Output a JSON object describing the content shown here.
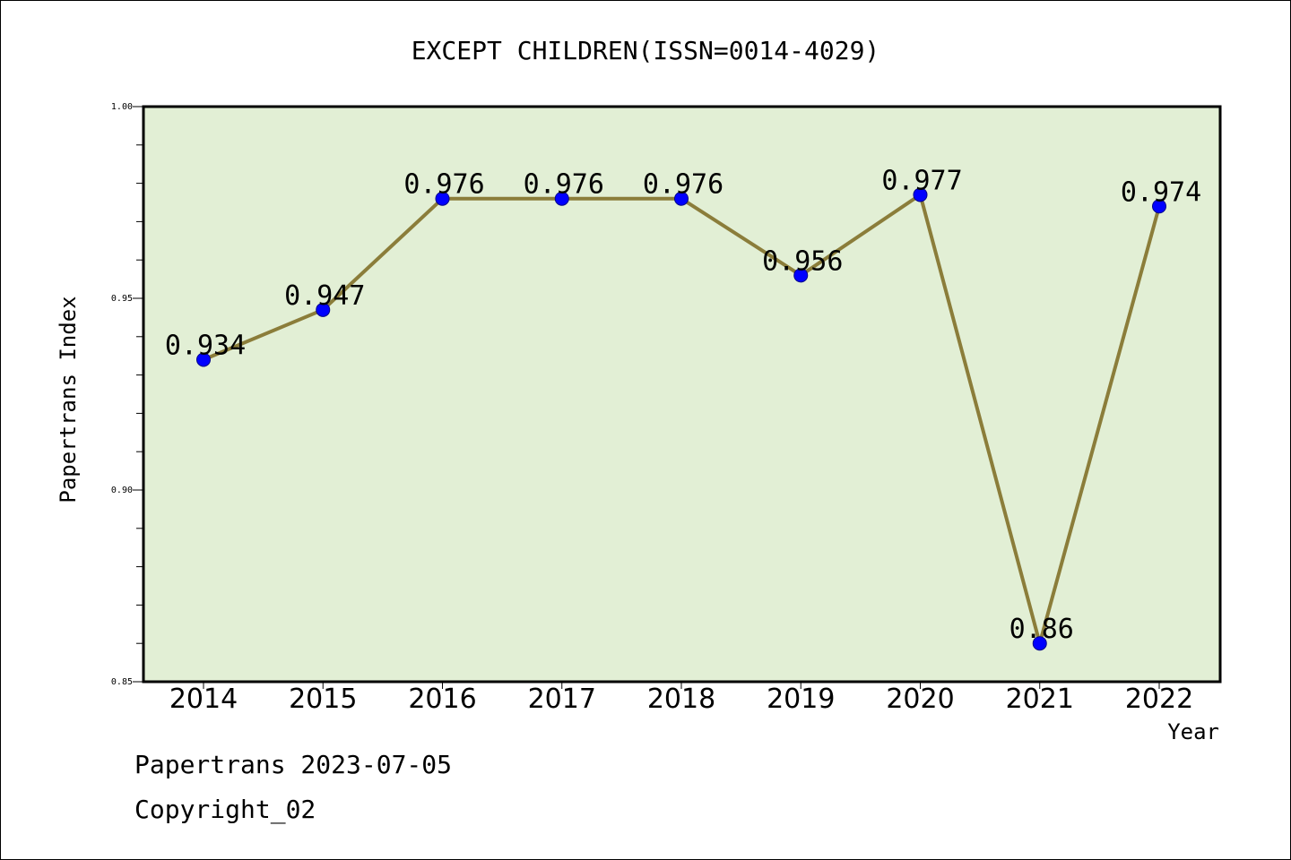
{
  "chart_data": {
    "type": "line",
    "title": "EXCEPT CHILDREN(ISSN=0014-4029)",
    "xlabel": "Year",
    "ylabel": "Papertrans Index",
    "categories": [
      "2014",
      "2015",
      "2016",
      "2017",
      "2018",
      "2019",
      "2020",
      "2021",
      "2022"
    ],
    "series": [
      {
        "values": [
          0.934,
          0.947,
          0.976,
          0.976,
          0.976,
          0.956,
          0.977,
          0.86,
          0.974
        ]
      }
    ],
    "data_labels": [
      "0.934",
      "0.947",
      "0.976",
      "0.976",
      "0.976",
      "0.956",
      "0.977",
      "0.86",
      "0.974"
    ],
    "ylim": [
      0.85,
      1.0
    ],
    "y_ticks": [
      "0.85",
      "0.90",
      "0.95",
      "1.00"
    ],
    "y_tick_values": [
      0.85,
      0.9,
      0.95,
      1.0
    ],
    "y_minor_step": 0.01,
    "grid": false,
    "colors": {
      "plot_background": "#e2efd5",
      "line": "#8b7d3a",
      "marker_fill": "#0000ff",
      "marker_edge": "#00008b"
    }
  },
  "footer": {
    "line1": "Papertrans 2023-07-05",
    "line2": "Copyright_02"
  }
}
